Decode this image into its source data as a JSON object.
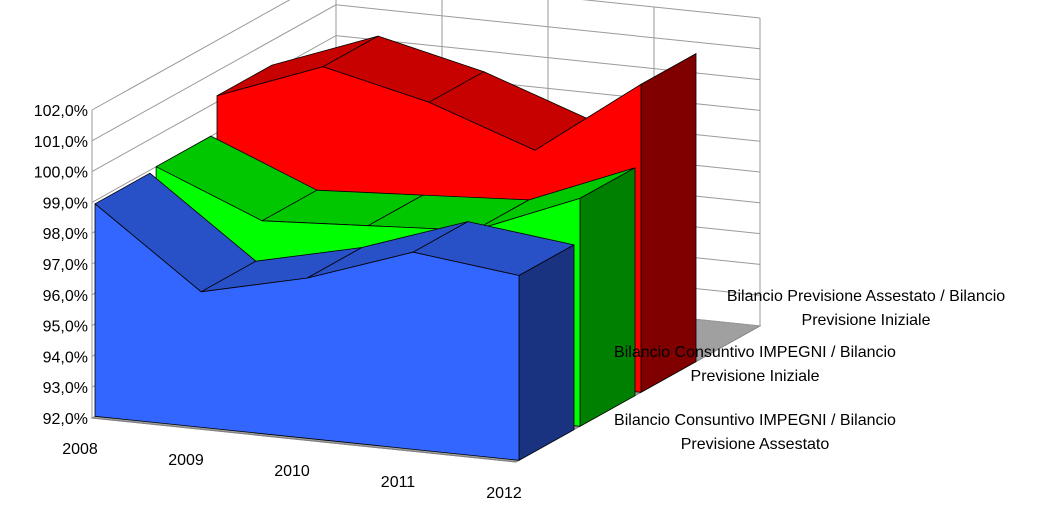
{
  "chart_data": {
    "type": "area",
    "variant": "3d-depth",
    "categories": [
      "2008",
      "2009",
      "2010",
      "2011",
      "2012"
    ],
    "ylim": [
      92.0,
      102.0
    ],
    "y_ticks": [
      "92,0%",
      "93,0%",
      "94,0%",
      "95,0%",
      "96,0%",
      "97,0%",
      "98,0%",
      "99,0%",
      "100,0%",
      "101,0%",
      "102,0%"
    ],
    "grid": true,
    "legend_position": "right",
    "series": [
      {
        "name_lines": [
          "Bilancio Consuntivo IMPEGNI / Bilancio",
          "Previsione Assestato"
        ],
        "color": "#3366ff",
        "values": [
          98.9,
          96.4,
          97.2,
          98.4,
          98.0
        ]
      },
      {
        "name_lines": [
          "Bilancio Consuntivo IMPEGNI / Bilancio",
          "Previsione Iniziale"
        ],
        "color": "#00ff00",
        "values": [
          99.0,
          97.6,
          97.8,
          98.0,
          99.4
        ]
      },
      {
        "name_lines": [
          "Bilancio Previsione Assestato / Bilancio",
          "Previsione Iniziale"
        ],
        "color": "#ff0000",
        "values": [
          100.2,
          101.5,
          100.7,
          99.5,
          102.0
        ]
      }
    ]
  }
}
